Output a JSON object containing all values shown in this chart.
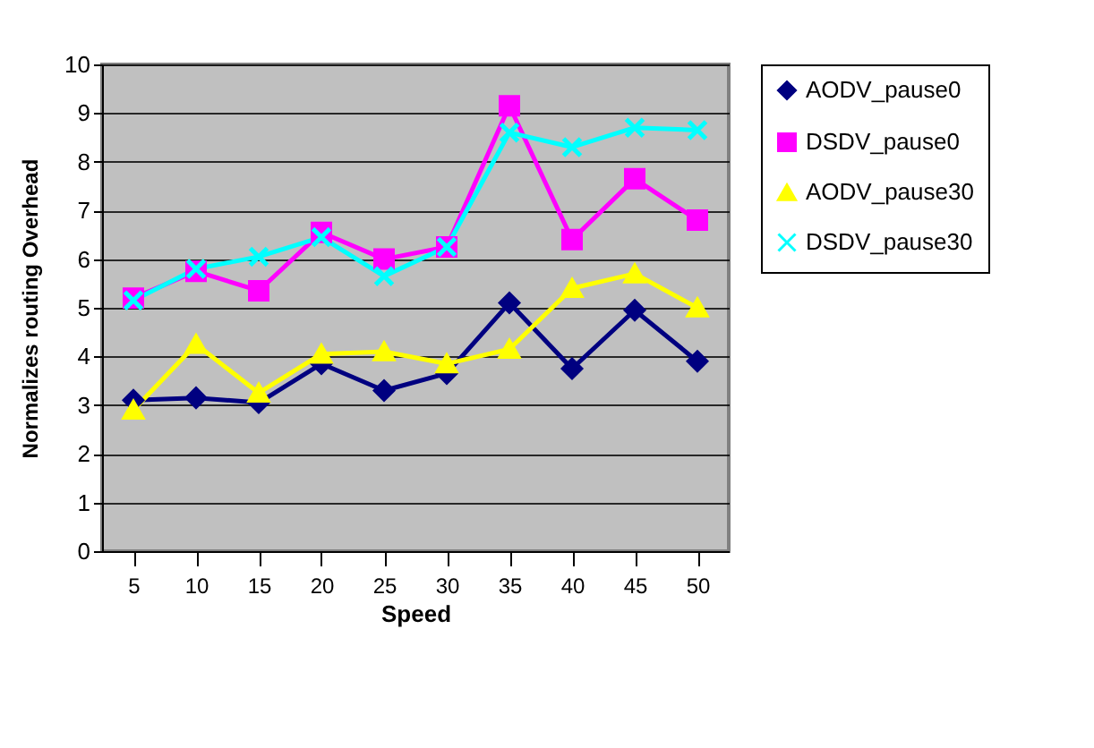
{
  "chart_data": {
    "type": "line",
    "xlabel": "Speed",
    "ylabel": "Normalizes routing Overhead",
    "categories": [
      "5",
      "10",
      "15",
      "20",
      "25",
      "30",
      "35",
      "40",
      "45",
      "50"
    ],
    "series": [
      {
        "name": "AODV_pause0",
        "color": "#000080",
        "marker": "diamond",
        "values": [
          3.1,
          3.15,
          3.05,
          3.85,
          3.3,
          3.65,
          5.1,
          3.75,
          4.95,
          3.9
        ]
      },
      {
        "name": "DSDV_pause0",
        "color": "#ff00ff",
        "marker": "square",
        "values": [
          5.2,
          5.75,
          5.35,
          6.55,
          6.0,
          6.25,
          9.15,
          6.4,
          7.65,
          6.8
        ]
      },
      {
        "name": "AODV_pause30",
        "color": "#ffff00",
        "marker": "triangle",
        "values": [
          2.9,
          4.25,
          3.25,
          4.05,
          4.1,
          3.85,
          4.15,
          5.4,
          5.7,
          5.0
        ]
      },
      {
        "name": "DSDV_pause30",
        "color": "#00ffff",
        "marker": "cross",
        "values": [
          5.15,
          5.8,
          6.05,
          6.45,
          5.65,
          6.25,
          8.6,
          8.3,
          8.7,
          8.65
        ]
      }
    ],
    "ylim": [
      0,
      10
    ],
    "yticks": [
      0,
      1,
      2,
      3,
      4,
      5,
      6,
      7,
      8,
      9,
      10
    ],
    "grid": "y",
    "legend": "right",
    "line_style": "solid"
  }
}
